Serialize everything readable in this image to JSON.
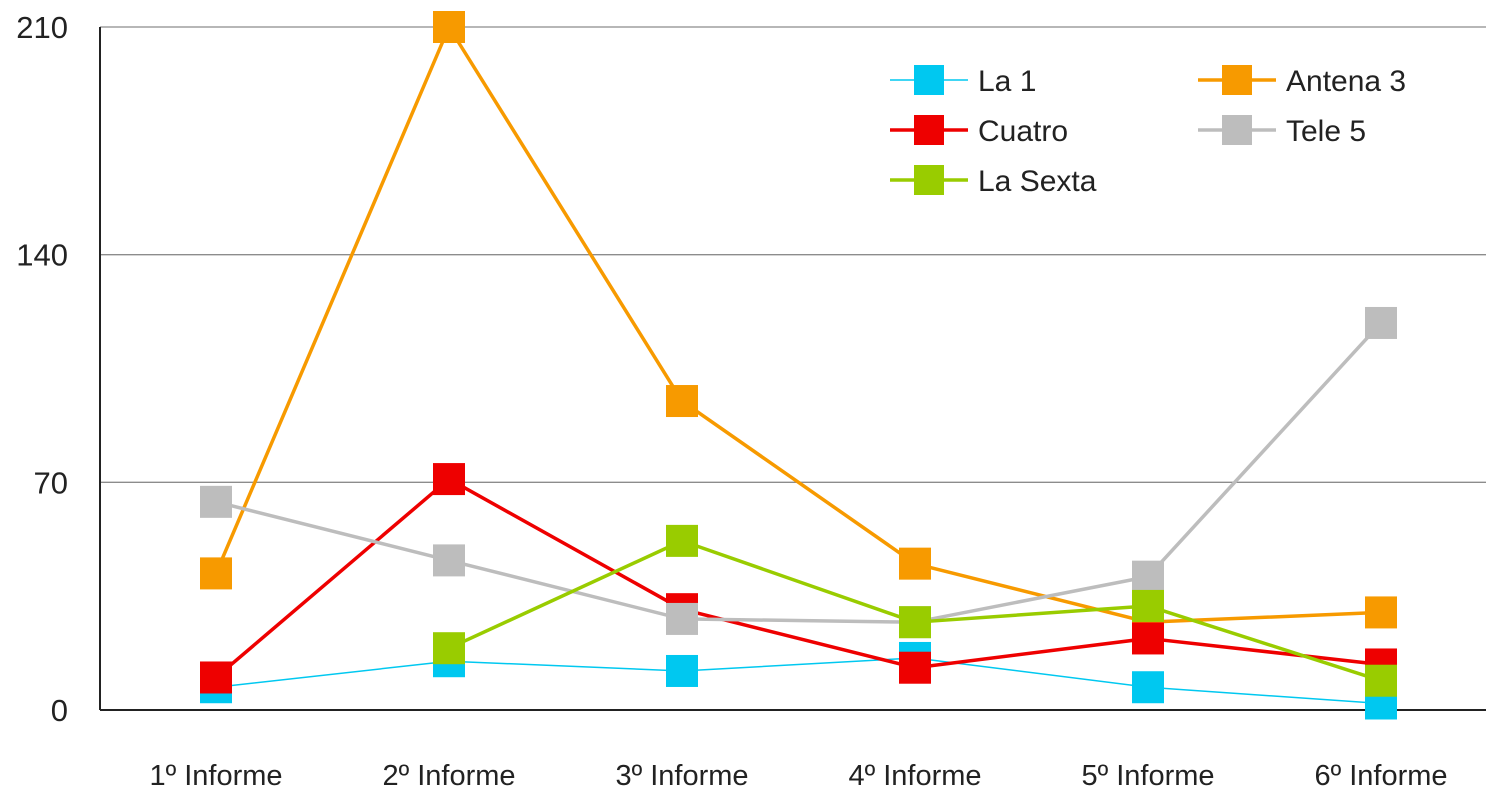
{
  "chart_data": {
    "type": "line",
    "categories": [
      "1º Informe",
      "2º Informe",
      "3º Informe",
      "4º Informe",
      "5º Informe",
      "6º Informe"
    ],
    "ylim": [
      0,
      210
    ],
    "yticks": [
      0,
      70,
      140,
      210
    ],
    "grid": true,
    "legend_position": "top-right",
    "series": [
      {
        "name": "La 1",
        "color": "#00C8F0",
        "values": [
          7,
          15,
          12,
          16,
          7,
          2
        ]
      },
      {
        "name": "Antena 3",
        "color": "#F79A00",
        "values": [
          42,
          210,
          95,
          45,
          27,
          30
        ]
      },
      {
        "name": "Cuatro",
        "color": "#EE0000",
        "values": [
          10,
          71,
          31,
          13,
          22,
          14
        ]
      },
      {
        "name": "Tele 5",
        "color": "#BDBDBD",
        "values": [
          64,
          46,
          28,
          27,
          41,
          119
        ]
      },
      {
        "name": "La Sexta",
        "color": "#99CC00",
        "values": [
          null,
          19,
          52,
          27,
          32,
          9
        ]
      }
    ]
  }
}
